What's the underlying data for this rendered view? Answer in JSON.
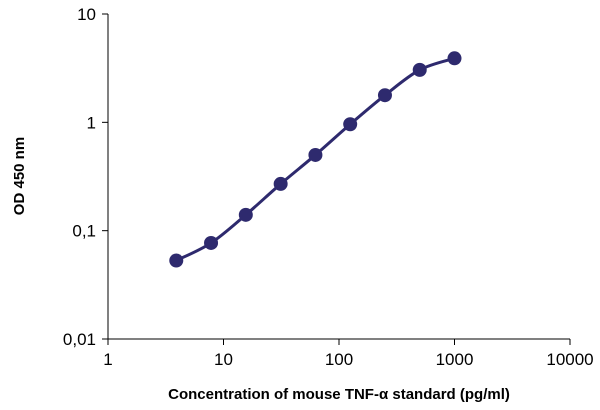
{
  "chart_data": {
    "type": "line",
    "title": "",
    "xlabel": "Concentration of mouse TNF-α standard (pg/ml)",
    "ylabel": "OD 450 nm",
    "xscale": "log",
    "yscale": "log",
    "xlim": [
      1,
      10000
    ],
    "ylim": [
      0.01,
      10
    ],
    "x_ticks": [
      1,
      10,
      100,
      1000,
      10000
    ],
    "x_tick_labels": [
      "1",
      "10",
      "100",
      "1000",
      "10000"
    ],
    "y_ticks": [
      0.01,
      0.1,
      1,
      10
    ],
    "y_tick_labels": [
      "0,01",
      "0,1",
      "1",
      "10"
    ],
    "grid": false,
    "legend": "none",
    "series": [
      {
        "x": [
          3.9,
          7.8,
          15.6,
          31.25,
          62.5,
          125,
          250,
          500,
          1000
        ],
        "y": [
          0.053,
          0.077,
          0.14,
          0.27,
          0.5,
          0.96,
          1.78,
          3.05,
          3.9
        ],
        "color": "#2e2a6e",
        "smooth": true
      }
    ]
  }
}
